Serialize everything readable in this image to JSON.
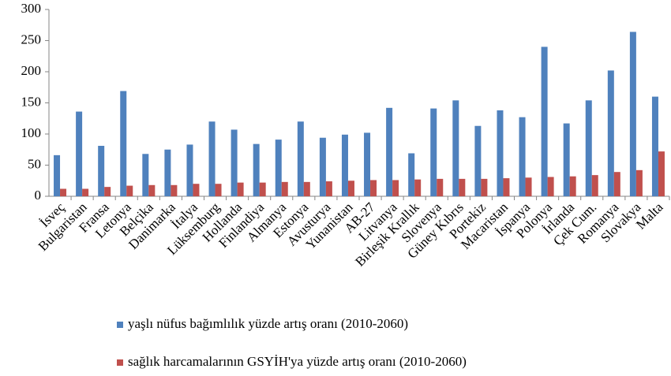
{
  "chart_data": {
    "type": "bar",
    "categories": [
      "İsveç",
      "Bulgaristan",
      "Fransa",
      "Letonya",
      "Belçika",
      "Danimarka",
      "İtalya",
      "Lüksemburg",
      "Hollanda",
      "Finlandiya",
      "Almanya",
      "Estonya",
      "Avusturya",
      "Yunanistan",
      "AB-27",
      "Litvanya",
      "Birleşik Krallık",
      "Slovenya",
      "Güney Kıbrıs",
      "Portekiz",
      "Macaristan",
      "İspanya",
      "Polonya",
      "İrlanda",
      "Çek Cum.",
      "Romanya",
      "Slovakya",
      "Malta"
    ],
    "series": [
      {
        "name": "yaşlı nüfus bağımlılık yüzde artış oranı (2010-2060)",
        "color": "#4f81bd",
        "values": [
          66,
          136,
          81,
          169,
          68,
          75,
          83,
          120,
          107,
          84,
          91,
          120,
          94,
          99,
          102,
          142,
          69,
          141,
          154,
          113,
          138,
          127,
          240,
          117,
          154,
          202,
          264,
          160
        ]
      },
      {
        "name": "sağlık harcamalarının GSYİH'ya yüzde artış oranı (2010-2060)",
        "color": "#c0504d",
        "values": [
          12,
          12,
          15,
          17,
          18,
          18,
          20,
          20,
          22,
          22,
          23,
          23,
          24,
          25,
          26,
          26,
          27,
          28,
          28,
          28,
          29,
          30,
          31,
          32,
          34,
          39,
          42,
          72
        ]
      }
    ],
    "ylim": [
      0,
      300
    ],
    "yticks": [
      0,
      50,
      100,
      150,
      200,
      250,
      300
    ],
    "grid": false
  }
}
